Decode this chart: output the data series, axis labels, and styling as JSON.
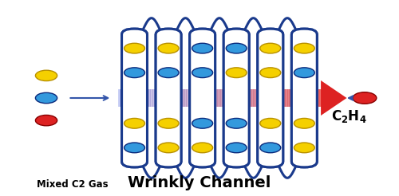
{
  "bg_color": "#ffffff",
  "title": "Wrinkly Channel",
  "title_fontsize": 14,
  "left_label": "Mixed C2 Gas",
  "channel_color": "#1a3a8c",
  "channel_lw": 2.2,
  "channel_fill": "#ffffff",
  "arrow_small_color": "#3355aa",
  "dot_yellow_color": "#f5d000",
  "dot_blue_color": "#3399dd",
  "dot_red_color": "#dd2222",
  "dot_yellow_edge": "#b89000",
  "dot_blue_edge": "#0a2a7c",
  "dot_red_edge": "#880000",
  "n_pillars": 6,
  "xL": 0.295,
  "xR": 0.805,
  "yT": 0.855,
  "yB": 0.145,
  "yM": 0.5,
  "pillar_hw": 0.032,
  "wrinkle_amp": 0.055,
  "dot_r": 0.026,
  "dot_edge_lw": 1.0
}
